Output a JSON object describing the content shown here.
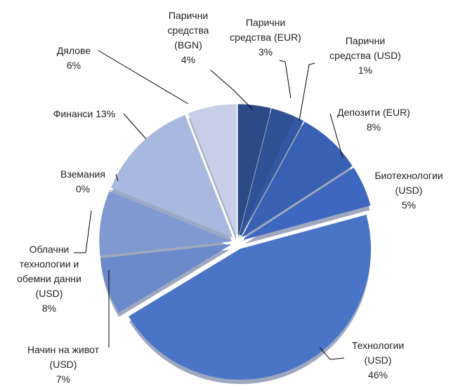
{
  "chart_data": {
    "type": "pie",
    "categories": [
      "Парични средства (BGN)",
      "Парични средства (EUR)",
      "Парични средства (USD)",
      "Депозити (EUR)",
      "Биотехнологии (USD)",
      "Технологии (USD)",
      "Начин на живот (USD)",
      "Облачни технологии и обемни данни (USD)",
      "Вземания",
      "Финанси",
      "Дялове"
    ],
    "values": [
      4,
      3,
      1,
      8,
      5,
      46,
      7,
      8,
      0,
      13,
      6
    ],
    "value_labels": [
      "4%",
      "3%",
      "1%",
      "8%",
      "5%",
      "46%",
      "7%",
      "8%",
      "0%",
      "13%",
      "6%"
    ],
    "colors": [
      "#2b4a86",
      "#2f5195",
      "#3358a3",
      "#3860b3",
      "#3e68bf",
      "#4a75c6",
      "#6a8acb",
      "#8099d0",
      "#93a8d6",
      "#a9b8de",
      "#c6cfe7"
    ]
  }
}
